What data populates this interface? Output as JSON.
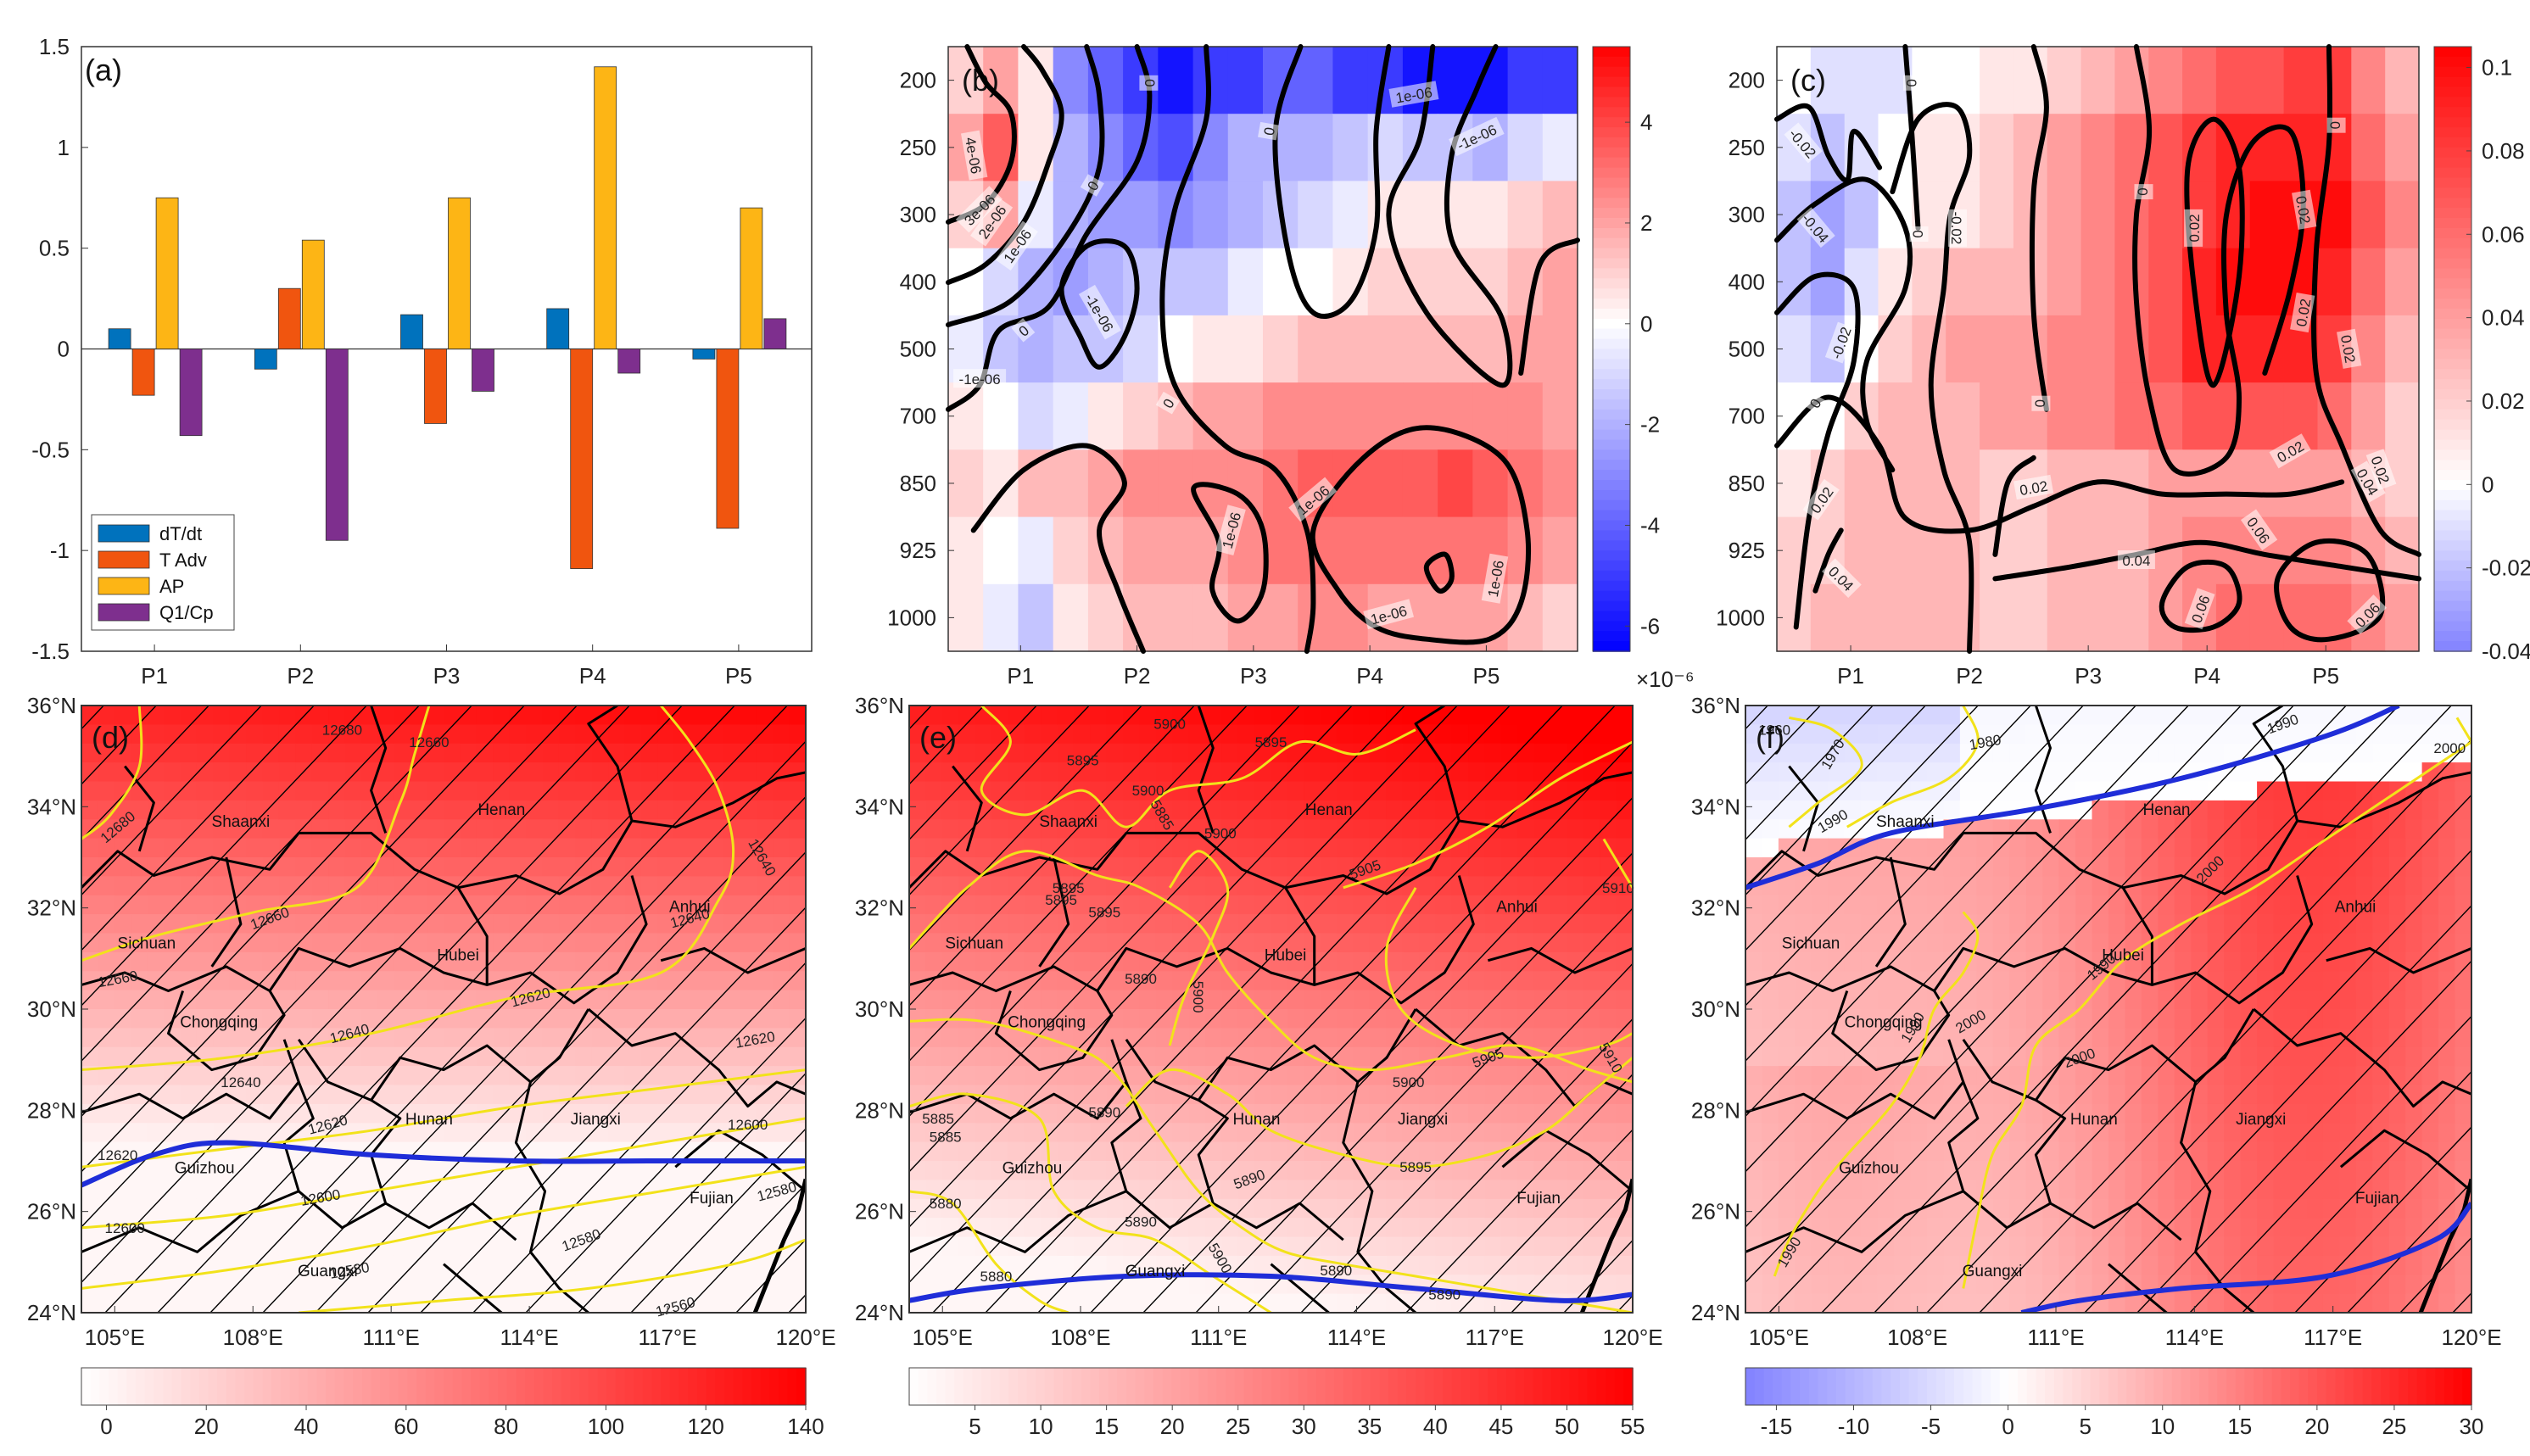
{
  "chart_data": [
    {
      "id": "a",
      "type": "bar",
      "panel_label": "(a)",
      "categories": [
        "P1",
        "P2",
        "P3",
        "P4",
        "P5"
      ],
      "ylim": [
        -1.5,
        1.5
      ],
      "yticks": [
        "1.5",
        "1",
        "0.5",
        "0",
        "-0.5",
        "-1",
        "-1.5"
      ],
      "series": [
        {
          "name": "dT/dt",
          "color": "#0072BD",
          "values": [
            0.1,
            -0.1,
            0.17,
            0.2,
            -0.05
          ]
        },
        {
          "name": "T Adv",
          "color": "#F0550F",
          "values": [
            -0.23,
            0.3,
            -0.37,
            -1.09,
            -0.89
          ]
        },
        {
          "name": "AP",
          "color": "#FDB515",
          "values": [
            0.75,
            0.54,
            0.75,
            1.4,
            0.7
          ]
        },
        {
          "name": "Q1/Cp",
          "color": "#7E2F8E",
          "values": [
            -0.43,
            -0.95,
            -0.21,
            -0.12,
            0.15
          ]
        }
      ]
    },
    {
      "id": "b",
      "type": "heatmap",
      "panel_label": "(b)",
      "x_ticks": [
        "P1",
        "P2",
        "P3",
        "P4",
        "P5"
      ],
      "y_ticks": [
        "200",
        "250",
        "300",
        "400",
        "500",
        "700",
        "850",
        "925",
        "1000"
      ],
      "colorbar": {
        "ticks": [
          "4",
          "2",
          "0",
          "-2",
          "-4",
          "-6"
        ],
        "min": -6.5,
        "max": 5.5,
        "exponent": "×10⁻⁶"
      },
      "contour_labels": [
        "0",
        "0",
        "0",
        "0",
        "0",
        "-1e-06",
        "1e-06",
        "3e-06",
        "2e-06",
        "1e-06",
        "4e-06",
        "-1e-06",
        "-1e-06",
        "1e-06",
        "1e-06",
        "1e-06",
        "1e-06"
      ],
      "rows": [
        [
          1.0,
          2.0,
          0.5,
          -3.0,
          -4.0,
          -5.0,
          -6.0,
          -5.0,
          -5.0,
          -4.0,
          -4.0,
          -5.0,
          -5.0,
          -6.0,
          -6.0,
          -6.0,
          -5.0,
          -5.0
        ],
        [
          2.0,
          3.5,
          0.5,
          -2.0,
          -3.0,
          -4.0,
          -4.5,
          -3.0,
          -2.0,
          -2.0,
          -2.0,
          -1.5,
          -1.0,
          -1.5,
          -1.5,
          -2.0,
          -1.0,
          -0.5
        ],
        [
          1.0,
          2.0,
          -0.5,
          -2.0,
          -2.5,
          -2.5,
          -3.0,
          -2.5,
          -2.0,
          -1.5,
          -1.0,
          -0.5,
          0.5,
          0.5,
          0.5,
          0.5,
          1.0,
          1.5
        ],
        [
          0.0,
          -1.0,
          -2.0,
          -2.5,
          -2.0,
          -1.5,
          -1.5,
          -1.5,
          -0.5,
          0.0,
          0.0,
          0.5,
          1.0,
          1.0,
          1.0,
          1.0,
          1.5,
          2.0
        ],
        [
          -0.5,
          -1.5,
          -2.0,
          -1.5,
          -1.5,
          -1.0,
          0.0,
          0.5,
          0.5,
          1.0,
          1.5,
          1.5,
          1.5,
          1.5,
          1.5,
          1.5,
          2.0,
          2.0
        ],
        [
          0.5,
          0.0,
          -1.0,
          -0.5,
          0.5,
          1.0,
          1.5,
          2.0,
          2.0,
          2.5,
          2.5,
          2.5,
          2.5,
          2.5,
          2.5,
          2.5,
          2.5,
          2.0
        ],
        [
          1.0,
          0.5,
          1.5,
          1.5,
          2.0,
          2.5,
          2.5,
          2.5,
          2.5,
          3.0,
          3.5,
          3.5,
          3.5,
          3.5,
          4.0,
          3.5,
          3.0,
          2.5
        ],
        [
          0.5,
          0.0,
          -0.5,
          1.0,
          1.5,
          2.0,
          2.0,
          2.0,
          2.5,
          3.0,
          3.0,
          3.0,
          3.0,
          3.0,
          3.0,
          3.0,
          2.5,
          2.0
        ],
        [
          0.5,
          -0.5,
          -1.5,
          0.5,
          1.0,
          1.5,
          1.5,
          1.5,
          2.0,
          2.0,
          2.5,
          2.5,
          2.0,
          2.0,
          2.0,
          2.0,
          1.5,
          1.0
        ]
      ]
    },
    {
      "id": "c",
      "type": "heatmap",
      "panel_label": "(c)",
      "x_ticks": [
        "P1",
        "P2",
        "P3",
        "P4",
        "P5"
      ],
      "y_ticks": [
        "200",
        "250",
        "300",
        "400",
        "500",
        "700",
        "850",
        "925",
        "1000"
      ],
      "colorbar": {
        "ticks": [
          "0.1",
          "0.08",
          "0.06",
          "0.04",
          "0.02",
          "0",
          "-0.02",
          "-0.04"
        ],
        "min": -0.04,
        "max": 0.105
      },
      "contour_labels": [
        "-0.02",
        "-0.04",
        "-0.02",
        "0",
        "-0.02",
        "0",
        "0",
        "0",
        "0",
        "0.02",
        "0.02",
        "0.02",
        "0.02",
        "0.02",
        "0.02",
        "0.02",
        "0.04",
        "0.04",
        "0.04",
        "0.06",
        "0.06",
        "0.06",
        "0",
        "0.02"
      ],
      "rows": [
        [
          0.0,
          -0.01,
          -0.01,
          -0.01,
          0.0,
          0.0,
          0.01,
          0.01,
          0.02,
          0.03,
          0.04,
          0.05,
          0.06,
          0.07,
          0.07,
          0.08,
          0.08,
          0.05,
          0.03
        ],
        [
          -0.01,
          -0.02,
          -0.01,
          0.0,
          0.01,
          0.01,
          0.02,
          0.03,
          0.04,
          0.05,
          0.06,
          0.07,
          0.08,
          0.09,
          0.09,
          0.09,
          0.09,
          0.06,
          0.04
        ],
        [
          -0.02,
          -0.03,
          -0.02,
          0.0,
          0.01,
          0.01,
          0.02,
          0.03,
          0.04,
          0.05,
          0.06,
          0.07,
          0.08,
          0.09,
          0.1,
          0.1,
          0.1,
          0.07,
          0.05
        ],
        [
          -0.02,
          -0.03,
          -0.01,
          0.01,
          0.02,
          0.03,
          0.03,
          0.03,
          0.04,
          0.05,
          0.06,
          0.07,
          0.09,
          0.1,
          0.1,
          0.1,
          0.09,
          0.06,
          0.04
        ],
        [
          -0.01,
          -0.02,
          0.0,
          0.02,
          0.03,
          0.04,
          0.04,
          0.04,
          0.05,
          0.05,
          0.06,
          0.07,
          0.09,
          0.09,
          0.09,
          0.09,
          0.08,
          0.05,
          0.03
        ],
        [
          0.0,
          0.0,
          0.02,
          0.03,
          0.03,
          0.03,
          0.04,
          0.04,
          0.05,
          0.05,
          0.06,
          0.06,
          0.07,
          0.07,
          0.07,
          0.07,
          0.06,
          0.04,
          0.02
        ],
        [
          0.01,
          0.02,
          0.03,
          0.03,
          0.03,
          0.03,
          0.02,
          0.02,
          0.03,
          0.03,
          0.03,
          0.04,
          0.04,
          0.04,
          0.04,
          0.04,
          0.04,
          0.03,
          0.02
        ],
        [
          0.02,
          0.02,
          0.03,
          0.03,
          0.03,
          0.03,
          0.02,
          0.02,
          0.03,
          0.03,
          0.03,
          0.04,
          0.05,
          0.05,
          0.05,
          0.05,
          0.05,
          0.04,
          0.03
        ],
        [
          0.02,
          0.03,
          0.03,
          0.03,
          0.03,
          0.03,
          0.02,
          0.02,
          0.03,
          0.03,
          0.03,
          0.04,
          0.05,
          0.06,
          0.06,
          0.06,
          0.06,
          0.05,
          0.04
        ]
      ]
    },
    {
      "id": "d",
      "type": "heatmap",
      "subtype": "map",
      "panel_label": "(d)",
      "x_ticks": [
        "105°E",
        "108°E",
        "111°E",
        "114°E",
        "117°E",
        "120°E"
      ],
      "y_ticks": [
        "36°N",
        "34°N",
        "32°N",
        "30°N",
        "28°N",
        "26°N",
        "24°N"
      ],
      "colorbar": {
        "ticks": [
          "0",
          "20",
          "40",
          "60",
          "80",
          "100",
          "120",
          "140"
        ],
        "min": -5,
        "max": 140
      },
      "field_range": [
        0,
        130
      ],
      "provinces": [
        "Shaanxi",
        "Henan",
        "Sichuan",
        "Anhui",
        "Hubei",
        "Chongqing",
        "Hunan",
        "Jiangxi",
        "Guizhou",
        "Fujian",
        "Guangxi"
      ],
      "contour_labels": [
        "12680",
        "12660",
        "12680",
        "12660",
        "12660",
        "12640",
        "12640",
        "12640",
        "12640",
        "12620",
        "12620",
        "12620",
        "12600",
        "12620",
        "12600",
        "12600",
        "12580",
        "12580",
        "12580",
        "12560"
      ]
    },
    {
      "id": "e",
      "type": "heatmap",
      "subtype": "map",
      "panel_label": "(e)",
      "x_ticks": [
        "105°E",
        "108°E",
        "111°E",
        "114°E",
        "117°E",
        "120°E"
      ],
      "y_ticks": [
        "36°N",
        "34°N",
        "32°N",
        "30°N",
        "28°N",
        "26°N",
        "24°N"
      ],
      "colorbar": {
        "ticks": [
          "5",
          "10",
          "15",
          "20",
          "25",
          "30",
          "35",
          "40",
          "45",
          "50",
          "55"
        ],
        "min": 0,
        "max": 55
      },
      "field_range": [
        2,
        54
      ],
      "provinces": [
        "Shaanxi",
        "Henan",
        "Sichuan",
        "Anhui",
        "Hubei",
        "Chongqing",
        "Hunan",
        "Jiangxi",
        "Guizhou",
        "Fujian",
        "Guangxi"
      ],
      "contour_labels": [
        "5900",
        "5895",
        "5895",
        "5900",
        "5885",
        "5900",
        "5895",
        "5905",
        "5895",
        "5910",
        "5895",
        "5890",
        "5900",
        "5905",
        "5910",
        "5890",
        "5885",
        "5890",
        "5900",
        "5895",
        "5890",
        "5880",
        "5885",
        "5890",
        "5880",
        "5900",
        "5890"
      ]
    },
    {
      "id": "f",
      "type": "heatmap",
      "subtype": "map",
      "panel_label": "(f)",
      "x_ticks": [
        "105°E",
        "108°E",
        "111°E",
        "114°E",
        "117°E",
        "120°E"
      ],
      "y_ticks": [
        "36°N",
        "34°N",
        "32°N",
        "30°N",
        "28°N",
        "26°N",
        "24°N"
      ],
      "colorbar": {
        "ticks": [
          "-15",
          "-10",
          "-5",
          "0",
          "5",
          "10",
          "15",
          "20",
          "25",
          "30"
        ],
        "min": -17,
        "max": 30
      },
      "field_range": [
        -10,
        22
      ],
      "provinces": [
        "Shaanxi",
        "Henan",
        "Sichuan",
        "Anhui",
        "Hubei",
        "Chongqing",
        "Hunan",
        "Jiangxi",
        "Guizhou",
        "Fujian",
        "Guangxi"
      ],
      "contour_labels": [
        "1960",
        "1970",
        "1980",
        "1990",
        "1990",
        "1990",
        "2000",
        "2000",
        "2000",
        "1990",
        "2000",
        "1990"
      ]
    }
  ]
}
